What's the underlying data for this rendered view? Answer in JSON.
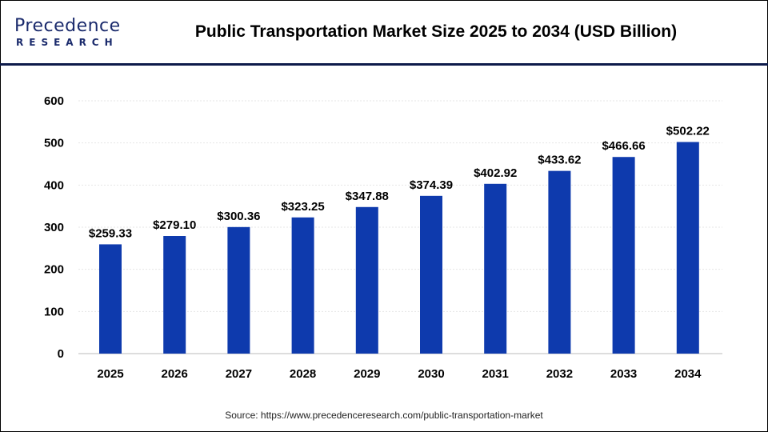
{
  "logo": {
    "line1": "Precedence",
    "line2": "RESEARCH"
  },
  "header": {
    "title": "Public Transportation Market Size 2025 to 2034 (USD Billion)"
  },
  "source": "Source: https://www.precedenceresearch.com/public-transportation-market",
  "chart_data": {
    "type": "bar",
    "title": "Public Transportation Market Size 2025 to 2034 (USD Billion)",
    "categories": [
      "2025",
      "2026",
      "2027",
      "2028",
      "2029",
      "2030",
      "2031",
      "2032",
      "2033",
      "2034"
    ],
    "values": [
      259.33,
      279.1,
      300.36,
      323.25,
      347.88,
      374.39,
      402.92,
      433.62,
      466.66,
      502.22
    ],
    "data_labels": [
      "$259.33",
      "$279.10",
      "$300.36",
      "$323.25",
      "$347.88",
      "$374.39",
      "$402.92",
      "$433.62",
      "$466.66",
      "$502.22"
    ],
    "ylim": [
      0,
      600
    ],
    "yticks": [
      "0",
      "100",
      "200",
      "300",
      "400",
      "500",
      "600"
    ],
    "grid": true,
    "bar_color": "#0e3aad",
    "xlabel": "",
    "ylabel": ""
  }
}
